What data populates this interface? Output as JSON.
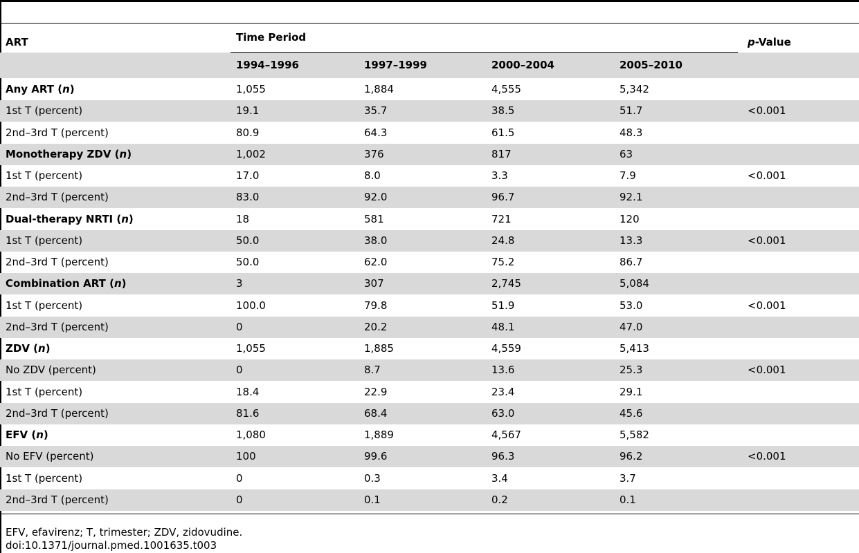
{
  "header": {
    "col_art": "ART",
    "col_time_period": "Time Period",
    "col_pvalue_p": "p",
    "col_pvalue_rest": "-Value",
    "periods": [
      "1994–1996",
      "1997–1999",
      "2000–2004",
      "2005–2010"
    ]
  },
  "rows": [
    {
      "label": "Any ART",
      "n": true,
      "bold": true,
      "values": [
        "1,055",
        "1,884",
        "4,555",
        "5,342"
      ],
      "p": ""
    },
    {
      "label": "1st T (percent)",
      "values": [
        "19.1",
        "35.7",
        "38.5",
        "51.7"
      ],
      "p": "<0.001"
    },
    {
      "label": "2nd–3rd T (percent)",
      "values": [
        "80.9",
        "64.3",
        "61.5",
        "48.3"
      ],
      "p": ""
    },
    {
      "label": "Monotherapy ZDV",
      "n": true,
      "bold": true,
      "values": [
        "1,002",
        "376",
        "817",
        "63"
      ],
      "p": ""
    },
    {
      "label": "1st T (percent)",
      "values": [
        "17.0",
        "8.0",
        "3.3",
        "7.9"
      ],
      "p": "<0.001"
    },
    {
      "label": "2nd–3rd T (percent)",
      "values": [
        "83.0",
        "92.0",
        "96.7",
        "92.1"
      ],
      "p": ""
    },
    {
      "label": "Dual-therapy NRTI",
      "n": true,
      "bold": true,
      "values": [
        "18",
        "581",
        "721",
        "120"
      ],
      "p": ""
    },
    {
      "label": "1st T (percent)",
      "values": [
        "50.0",
        "38.0",
        "24.8",
        "13.3"
      ],
      "p": "<0.001"
    },
    {
      "label": "2nd–3rd T (percent)",
      "values": [
        "50.0",
        "62.0",
        "75.2",
        "86.7"
      ],
      "p": ""
    },
    {
      "label": "Combination ART",
      "n": true,
      "bold": true,
      "values": [
        "3",
        "307",
        "2,745",
        "5,084"
      ],
      "p": ""
    },
    {
      "label": "1st T (percent)",
      "values": [
        "100.0",
        "79.8",
        "51.9",
        "53.0"
      ],
      "p": "<0.001"
    },
    {
      "label": "2nd–3rd T (percent)",
      "values": [
        "0",
        "20.2",
        "48.1",
        "47.0"
      ],
      "p": ""
    },
    {
      "label": "ZDV",
      "n": true,
      "bold": true,
      "values": [
        "1,055",
        "1,885",
        "4,559",
        "5,413"
      ],
      "p": ""
    },
    {
      "label": "No ZDV (percent)",
      "values": [
        "0",
        "8.7",
        "13.6",
        "25.3"
      ],
      "p": "<0.001"
    },
    {
      "label": "1st T (percent)",
      "values": [
        "18.4",
        "22.9",
        "23.4",
        "29.1"
      ],
      "p": ""
    },
    {
      "label": "2nd–3rd T (percent)",
      "values": [
        "81.6",
        "68.4",
        "63.0",
        "45.6"
      ],
      "p": ""
    },
    {
      "label": "EFV",
      "n": true,
      "bold": true,
      "values": [
        "1,080",
        "1,889",
        "4,567",
        "5,582"
      ],
      "p": ""
    },
    {
      "label": "No EFV (percent)",
      "values": [
        "100",
        "99.6",
        "96.3",
        "96.2"
      ],
      "p": "<0.001"
    },
    {
      "label": "1st T (percent)",
      "values": [
        "0",
        "0.3",
        "3.4",
        "3.7"
      ],
      "p": ""
    },
    {
      "label": "2nd–3rd T (percent)",
      "values": [
        "0",
        "0.1",
        "0.2",
        "0.1"
      ],
      "p": ""
    }
  ],
  "n_symbol": "n",
  "footnotes": {
    "abbreviations": "EFV, efavirenz; T, trimester; ZDV, zidovudine.",
    "doi": "doi:10.1371/journal.pmed.1001635.t003"
  },
  "colors": {
    "row_shade": "#d9d9d9",
    "rule": "#000000"
  }
}
